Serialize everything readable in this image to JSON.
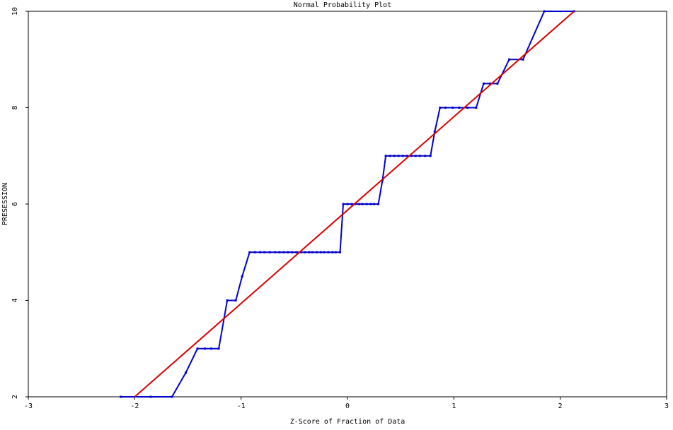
{
  "chart_data": {
    "type": "line",
    "title": "Normal Probability Plot",
    "xlabel": "Z-Score of Fraction of Data",
    "ylabel": "PRESESSION",
    "xlim": [
      -3,
      3
    ],
    "ylim": [
      2,
      10
    ],
    "xticks": [
      -3,
      -2,
      -1,
      0,
      1,
      2,
      3
    ],
    "yticks": [
      2,
      4,
      6,
      8,
      10
    ],
    "xtick_labels": [
      "-3",
      "-2",
      "-1",
      "0",
      "1",
      "2",
      "3"
    ],
    "ytick_labels": [
      "2",
      "4",
      "6",
      "8",
      "10"
    ],
    "grid": false,
    "legend": "none",
    "series": [
      {
        "role": "data",
        "color": "#0000cc",
        "marker": "square",
        "x": [
          -2.13,
          -1.85,
          -1.65,
          -1.52,
          -1.41,
          -1.34,
          -1.28,
          -1.21,
          -1.13,
          -1.05,
          -0.99,
          -0.92,
          -0.87,
          -0.82,
          -0.78,
          -0.73,
          -0.68,
          -0.64,
          -0.6,
          -0.56,
          -0.52,
          -0.48,
          -0.44,
          -0.4,
          -0.36,
          -0.33,
          -0.29,
          -0.25,
          -0.22,
          -0.18,
          -0.14,
          -0.11,
          -0.07,
          -0.04,
          0.0,
          0.04,
          0.07,
          0.11,
          0.14,
          0.18,
          0.22,
          0.25,
          0.29,
          0.33,
          0.36,
          0.4,
          0.44,
          0.48,
          0.52,
          0.56,
          0.6,
          0.64,
          0.68,
          0.73,
          0.78,
          0.82,
          0.87,
          0.92,
          0.99,
          1.05,
          1.13,
          1.21,
          1.28,
          1.34,
          1.41,
          1.52,
          1.65,
          1.85,
          2.13
        ],
        "y": [
          2,
          2,
          2,
          2.5,
          3,
          3,
          3,
          3,
          4,
          4,
          4.5,
          5,
          5,
          5,
          5,
          5,
          5,
          5,
          5,
          5,
          5,
          5,
          5,
          5,
          5,
          5,
          5,
          5,
          5,
          5,
          5,
          5,
          5,
          6,
          6,
          6,
          6,
          6,
          6,
          6,
          6,
          6,
          6,
          6.5,
          7,
          7,
          7,
          7,
          7,
          7,
          7,
          7,
          7,
          7,
          7,
          7.5,
          8,
          8,
          8,
          8,
          8,
          8,
          8.5,
          8.5,
          8.5,
          9,
          9,
          10,
          10
        ]
      },
      {
        "role": "fit",
        "color": "#dd0000",
        "marker": "none",
        "x": [
          -2.0,
          2.13
        ],
        "y": [
          2,
          10
        ]
      }
    ]
  }
}
